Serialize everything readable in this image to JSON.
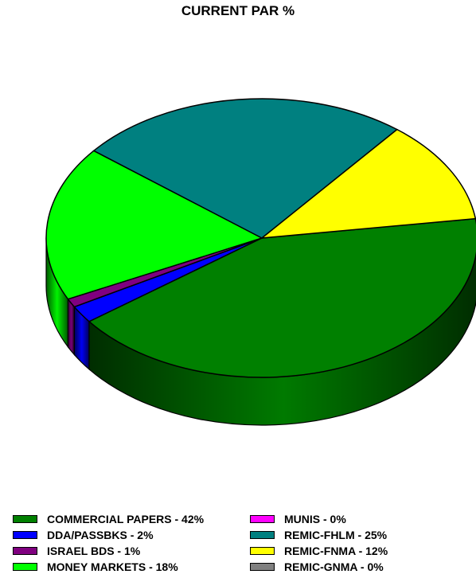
{
  "chart_data": {
    "type": "pie",
    "title": "CURRENT PAR %",
    "slices": [
      {
        "label": "COMMERCIAL PAPERS - 42%",
        "value": 42,
        "color": "#008000"
      },
      {
        "label": "DDA/PASSBKS - 2%",
        "value": 2,
        "color": "#0000FF"
      },
      {
        "label": "ISRAEL BDS - 1%",
        "value": 1,
        "color": "#800080"
      },
      {
        "label": "MONEY MARKETS - 18%",
        "value": 18,
        "color": "#00FF00"
      },
      {
        "label": "MUNIS - 0%",
        "value": 0,
        "color": "#FF00FF"
      },
      {
        "label": "REMIC-FHLM - 25%",
        "value": 25,
        "color": "#008080"
      },
      {
        "label": "REMIC-FNMA - 12%",
        "value": 12,
        "color": "#FFFF00"
      },
      {
        "label": "REMIC-GNMA - 0%",
        "value": 0,
        "color": "#808080"
      }
    ],
    "legend_position": "bottom"
  }
}
